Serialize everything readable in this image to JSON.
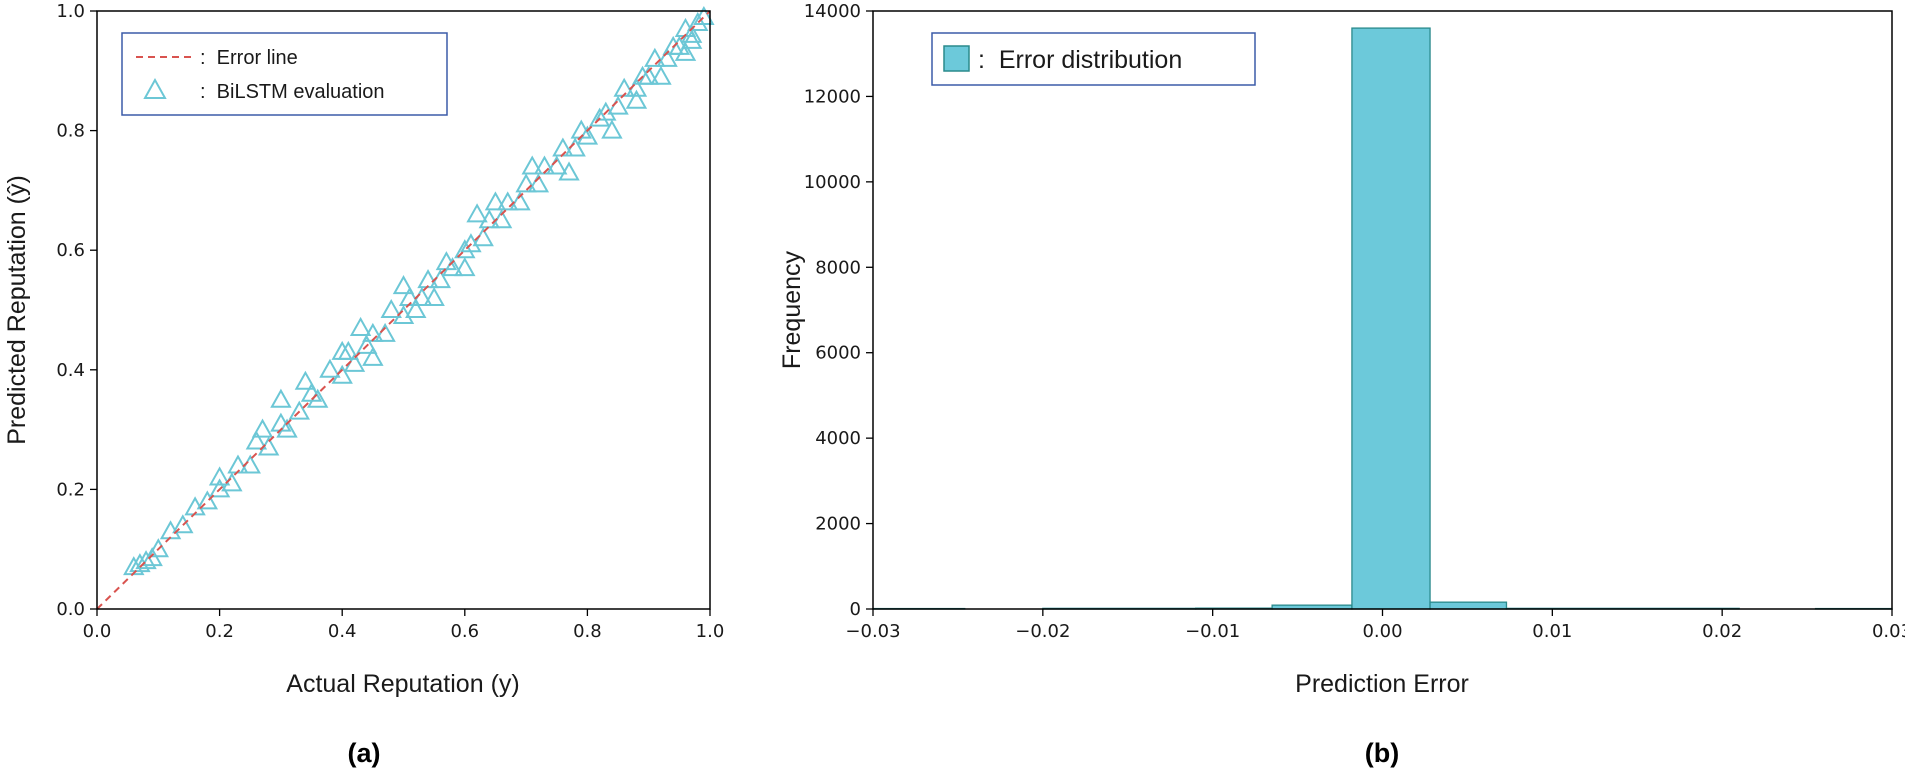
{
  "chart_data": [
    {
      "type": "scatter",
      "panel_caption": "(a)",
      "xlabel": "Actual Reputation (y)",
      "ylabel": "Predicted Reputation (ŷ)",
      "xlim": [
        0,
        1
      ],
      "ylim": [
        0,
        1
      ],
      "xticks": [
        "0.0",
        "0.2",
        "0.4",
        "0.6",
        "0.8",
        "1.0"
      ],
      "yticks": [
        "0.0",
        "0.2",
        "0.4",
        "0.6",
        "0.8",
        "1.0"
      ],
      "grid": false,
      "legend_position": "top-left",
      "legend": [
        {
          "marker": "--",
          "label": "Error line",
          "color": "#d9534f"
        },
        {
          "marker": "△",
          "label": "BiLSTM evaluation",
          "color": "#6cc7d6"
        }
      ],
      "series": [
        {
          "name": "Error line",
          "kind": "line",
          "x": [
            0,
            1
          ],
          "y": [
            0,
            1
          ]
        },
        {
          "name": "BiLSTM evaluation",
          "kind": "scatter",
          "x": [
            0.06,
            0.07,
            0.08,
            0.09,
            0.1,
            0.12,
            0.14,
            0.16,
            0.18,
            0.2,
            0.22,
            0.23,
            0.25,
            0.26,
            0.28,
            0.3,
            0.31,
            0.33,
            0.35,
            0.36,
            0.38,
            0.4,
            0.41,
            0.42,
            0.44,
            0.45,
            0.47,
            0.48,
            0.5,
            0.51,
            0.53,
            0.54,
            0.56,
            0.57,
            0.58,
            0.6,
            0.61,
            0.63,
            0.64,
            0.66,
            0.67,
            0.69,
            0.7,
            0.72,
            0.73,
            0.75,
            0.76,
            0.78,
            0.79,
            0.8,
            0.82,
            0.83,
            0.85,
            0.86,
            0.88,
            0.89,
            0.9,
            0.91,
            0.93,
            0.94,
            0.95,
            0.96,
            0.97,
            0.98,
            0.99,
            0.27,
            0.34,
            0.43,
            0.5,
            0.52,
            0.62,
            0.71,
            0.88,
            0.92,
            0.96,
            0.3,
            0.4,
            0.55,
            0.65,
            0.77,
            0.84,
            0.97,
            0.2,
            0.45,
            0.6
          ],
          "y": [
            0.07,
            0.075,
            0.08,
            0.085,
            0.1,
            0.13,
            0.14,
            0.17,
            0.18,
            0.2,
            0.21,
            0.24,
            0.24,
            0.28,
            0.27,
            0.31,
            0.3,
            0.33,
            0.36,
            0.35,
            0.4,
            0.39,
            0.43,
            0.41,
            0.44,
            0.46,
            0.46,
            0.5,
            0.49,
            0.52,
            0.52,
            0.55,
            0.55,
            0.58,
            0.57,
            0.6,
            0.61,
            0.62,
            0.65,
            0.65,
            0.68,
            0.68,
            0.71,
            0.71,
            0.74,
            0.74,
            0.77,
            0.77,
            0.8,
            0.79,
            0.82,
            0.83,
            0.84,
            0.87,
            0.87,
            0.89,
            0.89,
            0.92,
            0.92,
            0.94,
            0.94,
            0.97,
            0.96,
            0.98,
            0.99,
            0.3,
            0.38,
            0.47,
            0.54,
            0.5,
            0.66,
            0.74,
            0.85,
            0.89,
            0.93,
            0.35,
            0.43,
            0.52,
            0.68,
            0.73,
            0.8,
            0.95,
            0.22,
            0.42,
            0.57
          ]
        }
      ]
    },
    {
      "type": "bar",
      "subtype": "histogram",
      "panel_caption": "(b)",
      "xlabel": "Prediction Error",
      "ylabel": "Frequency",
      "xlim": [
        -0.03,
        0.03
      ],
      "ylim": [
        0,
        14000
      ],
      "xticks": [
        "−0.03",
        "−0.02",
        "−0.01",
        "0.00",
        "0.01",
        "0.02",
        "0.03"
      ],
      "yticks": [
        "0",
        "2000",
        "4000",
        "6000",
        "8000",
        "10000",
        "12000",
        "14000"
      ],
      "grid": false,
      "legend_position": "top-left",
      "legend": [
        {
          "marker": "■",
          "label": "Error distribution",
          "color": "#6cc9da"
        }
      ],
      "series": [
        {
          "name": "Error distribution",
          "bins": [
            {
              "start": -0.034,
              "end": -0.0246,
              "value": 10
            },
            {
              "start": -0.02,
              "end": -0.011,
              "value": 15
            },
            {
              "start": -0.011,
              "end": -0.0065,
              "value": 20
            },
            {
              "start": -0.0065,
              "end": -0.0018,
              "value": 90
            },
            {
              "start": -0.0018,
              "end": 0.0028,
              "value": 13600
            },
            {
              "start": 0.0028,
              "end": 0.0073,
              "value": 160
            },
            {
              "start": 0.0073,
              "end": 0.021,
              "value": 15
            },
            {
              "start": 0.0255,
              "end": 0.034,
              "value": 10
            }
          ]
        }
      ]
    }
  ],
  "colors": {
    "scatter_marker": "#6cc7d6",
    "error_line": "#d9534f",
    "bar_fill": "#6cc9da",
    "bar_edge": "#2a8a8c",
    "legend_border": "#3b5ba8"
  }
}
